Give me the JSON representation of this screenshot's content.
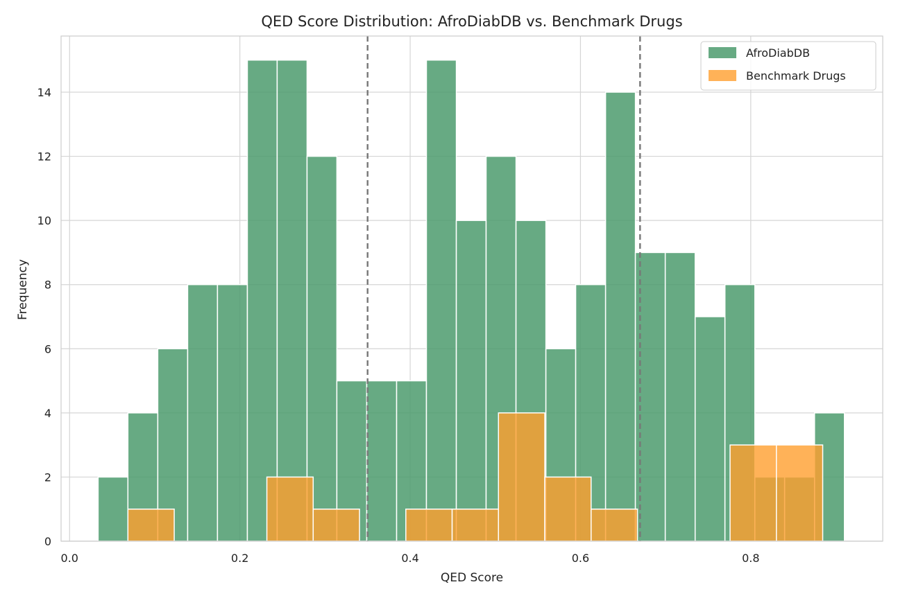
{
  "chart_data": {
    "type": "bar",
    "title": "QED Score Distribution: AfroDiabDB vs. Benchmark Drugs",
    "xlabel": "QED Score",
    "ylabel": "Frequency",
    "xlim": [
      -0.01,
      0.955
    ],
    "ylim": [
      0,
      15.75
    ],
    "xticks": [
      0.0,
      0.2,
      0.4,
      0.6,
      0.8
    ],
    "xtick_labels": [
      "0.0",
      "0.2",
      "0.4",
      "0.6",
      "0.8"
    ],
    "yticks": [
      0,
      2,
      4,
      6,
      8,
      10,
      12,
      14
    ],
    "ytick_labels": [
      "0",
      "2",
      "4",
      "6",
      "8",
      "10",
      "12",
      "14"
    ],
    "grid": true,
    "legend_position": "top-right",
    "reference_lines": [
      0.35,
      0.67
    ],
    "series": [
      {
        "name": "AfroDiabDB",
        "color": "#4c9b6d",
        "bins": [
          {
            "x0": 0.0335,
            "x1": 0.0685,
            "count": 2
          },
          {
            "x0": 0.0685,
            "x1": 0.1036,
            "count": 4
          },
          {
            "x0": 0.1036,
            "x1": 0.1387,
            "count": 6
          },
          {
            "x0": 0.1387,
            "x1": 0.1737,
            "count": 8
          },
          {
            "x0": 0.1737,
            "x1": 0.2088,
            "count": 8
          },
          {
            "x0": 0.2088,
            "x1": 0.2438,
            "count": 15
          },
          {
            "x0": 0.2438,
            "x1": 0.2789,
            "count": 15
          },
          {
            "x0": 0.2789,
            "x1": 0.3139,
            "count": 12
          },
          {
            "x0": 0.3139,
            "x1": 0.349,
            "count": 5
          },
          {
            "x0": 0.349,
            "x1": 0.3841,
            "count": 5
          },
          {
            "x0": 0.3841,
            "x1": 0.4191,
            "count": 5
          },
          {
            "x0": 0.4191,
            "x1": 0.4542,
            "count": 15
          },
          {
            "x0": 0.4542,
            "x1": 0.4892,
            "count": 10
          },
          {
            "x0": 0.4892,
            "x1": 0.5243,
            "count": 12
          },
          {
            "x0": 0.5243,
            "x1": 0.5594,
            "count": 10
          },
          {
            "x0": 0.5594,
            "x1": 0.5944,
            "count": 6
          },
          {
            "x0": 0.5944,
            "x1": 0.6295,
            "count": 8
          },
          {
            "x0": 0.6295,
            "x1": 0.6645,
            "count": 14
          },
          {
            "x0": 0.6645,
            "x1": 0.6996,
            "count": 9
          },
          {
            "x0": 0.6996,
            "x1": 0.7347,
            "count": 9
          },
          {
            "x0": 0.7347,
            "x1": 0.7697,
            "count": 7
          },
          {
            "x0": 0.7697,
            "x1": 0.8048,
            "count": 8
          },
          {
            "x0": 0.8048,
            "x1": 0.8398,
            "count": 2
          },
          {
            "x0": 0.8398,
            "x1": 0.8749,
            "count": 2
          },
          {
            "x0": 0.8749,
            "x1": 0.91,
            "count": 4
          }
        ]
      },
      {
        "name": "Benchmark Drugs",
        "color": "#ff9f2e",
        "bins": [
          {
            "x0": 0.0685,
            "x1": 0.1229,
            "count": 1
          },
          {
            "x0": 0.1229,
            "x1": 0.1773,
            "count": 0
          },
          {
            "x0": 0.1773,
            "x1": 0.2317,
            "count": 0
          },
          {
            "x0": 0.2317,
            "x1": 0.2861,
            "count": 2
          },
          {
            "x0": 0.2861,
            "x1": 0.3405,
            "count": 1
          },
          {
            "x0": 0.3405,
            "x1": 0.3949,
            "count": 0
          },
          {
            "x0": 0.3949,
            "x1": 0.4493,
            "count": 1
          },
          {
            "x0": 0.4493,
            "x1": 0.5037,
            "count": 1
          },
          {
            "x0": 0.5037,
            "x1": 0.5581,
            "count": 4
          },
          {
            "x0": 0.5581,
            "x1": 0.6125,
            "count": 2
          },
          {
            "x0": 0.6125,
            "x1": 0.6669,
            "count": 1
          },
          {
            "x0": 0.6669,
            "x1": 0.7213,
            "count": 0
          },
          {
            "x0": 0.7213,
            "x1": 0.7757,
            "count": 0
          },
          {
            "x0": 0.7757,
            "x1": 0.8301,
            "count": 3
          },
          {
            "x0": 0.8301,
            "x1": 0.8845,
            "count": 3
          }
        ]
      }
    ]
  }
}
